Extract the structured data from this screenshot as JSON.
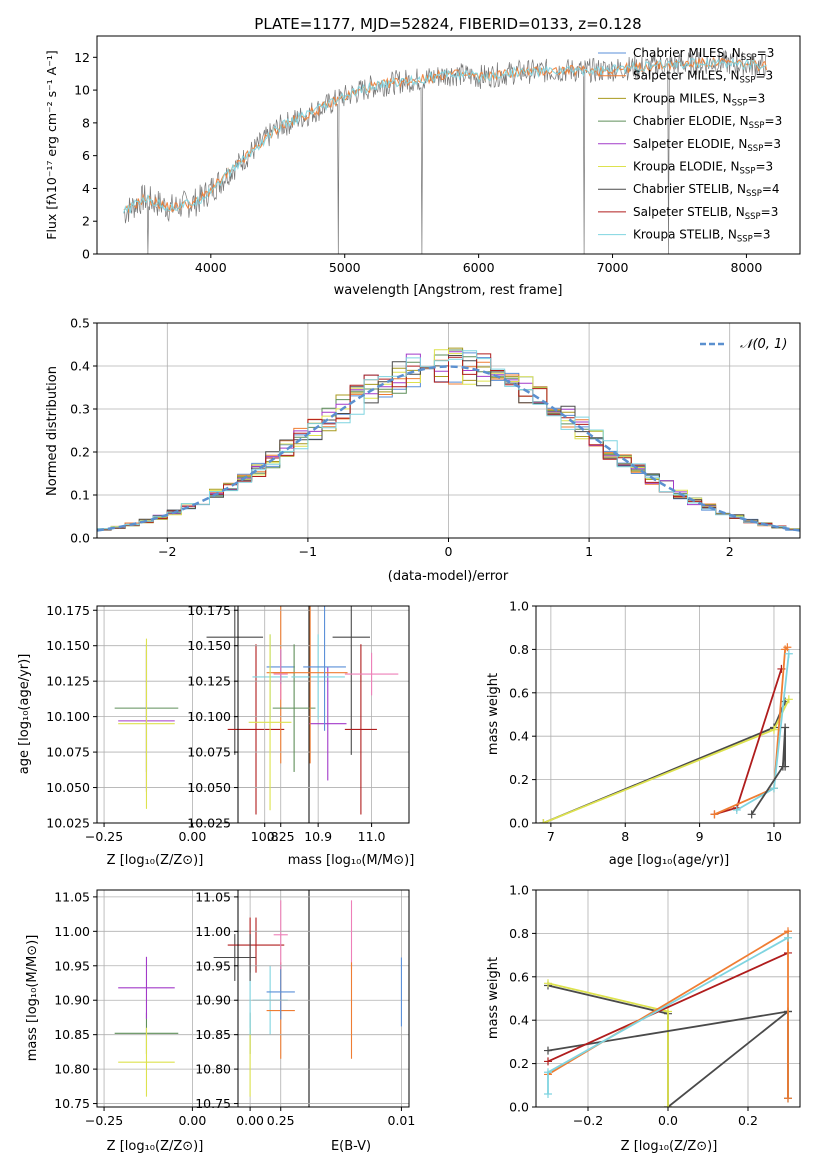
{
  "colors": {
    "chabrier_miles": "#5a8fd8",
    "salpeter_miles": "#ef7d33",
    "kroupa_miles": "#a89a1e",
    "chabrier_elodie": "#5f8f5a",
    "salpeter_elodie": "#a23ac9",
    "kroupa_elodie": "#dde24e",
    "chabrier_stelib": "#4a4a4a",
    "salpeter_stelib": "#b01d1d",
    "kroupa_stelib": "#7fd4e0",
    "pink": "#ee7fb8",
    "gauss": "#5b90cf",
    "data": "#777777"
  },
  "chart_data": [
    {
      "id": "spectrum",
      "type": "line",
      "title": "PLATE=1177, MJD=52824, FIBERID=0133, z=0.128",
      "xlabel": "wavelength [Angstrom, rest frame]",
      "ylabel": "Flux [fλ10⁻¹⁷ erg cm⁻² s⁻¹ A⁻¹]",
      "xlim": [
        3150,
        8400
      ],
      "ylim": [
        0,
        13.3
      ],
      "xticks": [
        "4000",
        "5000",
        "6000",
        "7000",
        "8000"
      ],
      "xtick_values": [
        4000,
        5000,
        6000,
        7000,
        8000
      ],
      "yticks": [
        "0",
        "2",
        "4",
        "6",
        "8",
        "10",
        "12"
      ],
      "ytick_values": [
        0,
        2,
        4,
        6,
        8,
        10,
        12
      ],
      "continuum": {
        "x": [
          3350,
          3500,
          3700,
          3900,
          4050,
          4300,
          4500,
          4800,
          5000,
          5200,
          5400,
          5600,
          5800,
          6000,
          6300,
          6600,
          6900,
          7200,
          7500,
          7800,
          8100
        ],
        "y": [
          2.5,
          3.4,
          2.8,
          3.2,
          4.3,
          6.2,
          7.7,
          8.8,
          9.6,
          10.2,
          10.5,
          10.7,
          11.0,
          10.8,
          11.1,
          11.2,
          11.2,
          11.4,
          11.6,
          11.7,
          11.5
        ]
      },
      "legend": [
        {
          "prefix": "Chabrier MILES, N",
          "sub": "SSP",
          "suffix": "=3",
          "color_key": "chabrier_miles"
        },
        {
          "prefix": "Salpeter MILES, N",
          "sub": "SSP",
          "suffix": "=3",
          "color_key": "salpeter_miles"
        },
        {
          "prefix": "Kroupa MILES, N",
          "sub": "SSP",
          "suffix": "=3",
          "color_key": "kroupa_miles"
        },
        {
          "prefix": "Chabrier ELODIE, N",
          "sub": "SSP",
          "suffix": "=3",
          "color_key": "chabrier_elodie"
        },
        {
          "prefix": "Salpeter ELODIE, N",
          "sub": "SSP",
          "suffix": "=3",
          "color_key": "salpeter_elodie"
        },
        {
          "prefix": "Kroupa ELODIE, N",
          "sub": "SSP",
          "suffix": "=3",
          "color_key": "kroupa_elodie"
        },
        {
          "prefix": "Chabrier STELIB, N",
          "sub": "SSP",
          "suffix": "=4",
          "color_key": "chabrier_stelib"
        },
        {
          "prefix": "Salpeter STELIB, N",
          "sub": "SSP",
          "suffix": "=3",
          "color_key": "salpeter_stelib"
        },
        {
          "prefix": "Kroupa STELIB, N",
          "sub": "SSP",
          "suffix": "=3",
          "color_key": "kroupa_stelib"
        }
      ]
    },
    {
      "id": "residuals",
      "type": "bar",
      "xlabel": "(data-model)/error",
      "ylabel": "Normed distribution",
      "xlim": [
        -2.5,
        2.5
      ],
      "ylim": [
        0,
        0.5
      ],
      "xticks": [
        "−2",
        "−1",
        "0",
        "1",
        "2"
      ],
      "xtick_values": [
        -2,
        -1,
        0,
        1,
        2
      ],
      "yticks": [
        "0.0",
        "0.1",
        "0.2",
        "0.3",
        "0.4",
        "0.5"
      ],
      "ytick_values": [
        0,
        0.1,
        0.2,
        0.3,
        0.4,
        0.5
      ],
      "legend": [
        {
          "label": "𝒩(0, 1)",
          "color_key": "gauss"
        }
      ],
      "series_color_keys": [
        "chabrier_miles",
        "salpeter_miles",
        "kroupa_miles",
        "chabrier_elodie",
        "salpeter_elodie",
        "kroupa_elodie",
        "chabrier_stelib",
        "salpeter_stelib",
        "kroupa_stelib"
      ]
    },
    {
      "id": "z_age",
      "type": "scatter",
      "xlabel": "Z [log₁₀(Z/Z⊙)]",
      "ylabel": "age  [log₁₀(age/yr)]",
      "xlim": [
        -0.27,
        0.33
      ],
      "ylim": [
        10.025,
        10.178
      ],
      "xticks": [
        "−0.25",
        "0.00",
        "0.25"
      ],
      "xtick_values": [
        -0.25,
        0,
        0.25
      ],
      "yticks": [
        "10.025",
        "10.050",
        "10.075",
        "10.100",
        "10.125",
        "10.150",
        "10.175"
      ],
      "ytick_values": [
        10.025,
        10.05,
        10.075,
        10.1,
        10.125,
        10.15,
        10.175
      ],
      "points": [
        {
          "x": -0.13,
          "y": 10.106,
          "xerr": 0.09,
          "yerr": 0.045,
          "color_key": "chabrier_elodie"
        },
        {
          "x": -0.13,
          "y": 10.097,
          "xerr": 0.08,
          "yerr": 0.05,
          "color_key": "salpeter_elodie"
        },
        {
          "x": -0.13,
          "y": 10.095,
          "xerr": 0.08,
          "yerr": 0.06,
          "color_key": "kroupa_elodie"
        },
        {
          "x": 0.12,
          "y": 10.156,
          "xerr": 0.08,
          "yerr": 0.083,
          "color_key": "chabrier_stelib"
        },
        {
          "x": 0.18,
          "y": 10.091,
          "xerr": 0.08,
          "yerr": 0.06,
          "color_key": "salpeter_stelib"
        },
        {
          "x": 0.22,
          "y": 10.128,
          "xerr": 0.05,
          "yerr": 0.03,
          "color_key": "kroupa_stelib"
        },
        {
          "x": 0.25,
          "y": 10.131,
          "xerr": 0.04,
          "yerr": 0.064,
          "color_key": "salpeter_miles"
        },
        {
          "x": 0.25,
          "y": 10.135,
          "xerr": 0.04,
          "yerr": 0.012,
          "color_key": "chabrier_miles"
        },
        {
          "x": 0.25,
          "y": 10.13,
          "xerr": 0.02,
          "yerr": 0.018,
          "color_key": "pink"
        }
      ]
    },
    {
      "id": "mass_age",
      "type": "scatter",
      "xlabel": "mass [log₁₀(M/M⊙)]",
      "ylabel": "",
      "xlim": [
        10.75,
        11.07
      ],
      "ylim": [
        10.025,
        10.178
      ],
      "xticks": [
        "10.8",
        "10.9",
        "11.0"
      ],
      "xtick_values": [
        10.8,
        10.9,
        11.0
      ],
      "yticks": [
        "10.025",
        "10.050",
        "10.075",
        "10.100",
        "10.125",
        "10.150",
        "10.175"
      ],
      "ytick_values": [
        10.025,
        10.05,
        10.075,
        10.1,
        10.125,
        10.15,
        10.175
      ],
      "points": [
        {
          "x": 10.855,
          "y": 10.106,
          "xerr": 0.04,
          "yerr": 0.045,
          "color_key": "chabrier_elodie"
        },
        {
          "x": 10.918,
          "y": 10.095,
          "xerr": 0.035,
          "yerr": 0.04,
          "color_key": "salpeter_elodie"
        },
        {
          "x": 10.81,
          "y": 10.096,
          "xerr": 0.04,
          "yerr": 0.062,
          "color_key": "kroupa_elodie"
        },
        {
          "x": 10.962,
          "y": 10.156,
          "xerr": 0.035,
          "yerr": 0.083,
          "color_key": "chabrier_stelib"
        },
        {
          "x": 10.98,
          "y": 10.091,
          "xerr": 0.03,
          "yerr": 0.06,
          "color_key": "salpeter_stelib"
        },
        {
          "x": 10.9,
          "y": 10.128,
          "xerr": 0.05,
          "yerr": 0.03,
          "color_key": "kroupa_stelib"
        },
        {
          "x": 10.885,
          "y": 10.131,
          "xerr": 0.07,
          "yerr": 0.064,
          "color_key": "salpeter_miles"
        },
        {
          "x": 10.912,
          "y": 10.135,
          "xerr": 0.04,
          "yerr": 0.045,
          "color_key": "chabrier_miles"
        },
        {
          "x": 11.0,
          "y": 10.13,
          "xerr": 0.05,
          "yerr": 0.015,
          "color_key": "pink"
        }
      ]
    },
    {
      "id": "age_weight",
      "type": "line",
      "xlabel": "age  [log₁₀(age/yr)]",
      "ylabel": "mass weight",
      "xlim": [
        6.8,
        10.35
      ],
      "ylim": [
        0,
        1.0
      ],
      "xticks": [
        "7",
        "8",
        "9",
        "10"
      ],
      "xtick_values": [
        7,
        8,
        9,
        10
      ],
      "yticks": [
        "0.0",
        "0.2",
        "0.4",
        "0.6",
        "0.8",
        "1.0"
      ],
      "ytick_values": [
        0,
        0.2,
        0.4,
        0.6,
        0.8,
        1.0
      ],
      "series": [
        {
          "color_key": "chabrier_stelib",
          "x": [
            6.9,
            10.0,
            10.15
          ],
          "y": [
            0.0,
            0.44,
            0.56
          ]
        },
        {
          "color_key": "kroupa_elodie",
          "x": [
            6.9,
            10.0,
            10.2
          ],
          "y": [
            0.0,
            0.43,
            0.57
          ]
        },
        {
          "color_key": "salpeter_stelib",
          "x": [
            9.2,
            9.5,
            10.1
          ],
          "y": [
            0.04,
            0.07,
            0.71
          ]
        },
        {
          "color_key": "salpeter_miles",
          "x": [
            9.2,
            10.0,
            10.15,
            10.18
          ],
          "y": [
            0.04,
            0.16,
            0.8,
            0.81
          ]
        },
        {
          "color_key": "kroupa_stelib",
          "x": [
            9.5,
            10.0,
            10.2
          ],
          "y": [
            0.06,
            0.16,
            0.78
          ]
        },
        {
          "color_key": "chabrier_stelib",
          "x": [
            9.7,
            10.12,
            10.15,
            10.15
          ],
          "y": [
            0.04,
            0.26,
            0.44,
            0.26
          ]
        }
      ]
    },
    {
      "id": "z_mass",
      "type": "scatter",
      "xlabel": "Z [log₁₀(Z/Z⊙)]",
      "ylabel": "mass [log₁₀(M/M⊙)]",
      "xlim": [
        -0.27,
        0.33
      ],
      "ylim": [
        10.745,
        11.06
      ],
      "xticks": [
        "−0.25",
        "0.00",
        "0.25"
      ],
      "xtick_values": [
        -0.25,
        0,
        0.25
      ],
      "yticks": [
        "10.75",
        "10.80",
        "10.85",
        "10.90",
        "10.95",
        "11.00",
        "11.05"
      ],
      "ytick_values": [
        10.75,
        10.8,
        10.85,
        10.9,
        10.95,
        11.0,
        11.05
      ],
      "points": [
        {
          "x": -0.13,
          "y": 10.852,
          "xerr": 0.09,
          "yerr": 0.03,
          "color_key": "chabrier_elodie"
        },
        {
          "x": -0.13,
          "y": 10.918,
          "xerr": 0.08,
          "yerr": 0.045,
          "color_key": "salpeter_elodie"
        },
        {
          "x": -0.13,
          "y": 10.81,
          "xerr": 0.08,
          "yerr": 0.05,
          "color_key": "kroupa_elodie"
        },
        {
          "x": 0.12,
          "y": 10.962,
          "xerr": 0.06,
          "yerr": 0.034,
          "color_key": "chabrier_stelib"
        },
        {
          "x": 0.18,
          "y": 10.98,
          "xerr": 0.08,
          "yerr": 0.04,
          "color_key": "salpeter_stelib"
        },
        {
          "x": 0.22,
          "y": 10.9,
          "xerr": 0.05,
          "yerr": 0.05,
          "color_key": "kroupa_stelib"
        },
        {
          "x": 0.25,
          "y": 10.885,
          "xerr": 0.04,
          "yerr": 0.07,
          "color_key": "salpeter_miles"
        },
        {
          "x": 0.25,
          "y": 10.912,
          "xerr": 0.04,
          "yerr": 0.04,
          "color_key": "chabrier_miles"
        },
        {
          "x": 0.25,
          "y": 10.995,
          "xerr": 0.02,
          "yerr": 0.05,
          "color_key": "pink"
        }
      ]
    },
    {
      "id": "ebv_mass",
      "type": "scatter",
      "xlabel": "E(B-V)",
      "ylabel": "",
      "xlim": [
        -0.0008,
        0.0105
      ],
      "ylim": [
        10.745,
        11.06
      ],
      "xticks": [
        "0.00",
        "0.01"
      ],
      "xtick_values": [
        0,
        0.01
      ],
      "yticks": [
        "10.75",
        "10.80",
        "10.85",
        "10.90",
        "10.95",
        "11.00",
        "11.05"
      ],
      "ytick_values": [
        10.75,
        10.8,
        10.85,
        10.9,
        10.95,
        11.0,
        11.05
      ],
      "points": [
        {
          "x": 0.0,
          "y": 10.852,
          "xerr": 0,
          "yerr": 0.03,
          "color_key": "chabrier_elodie"
        },
        {
          "x": 0.0,
          "y": 10.81,
          "xerr": 0,
          "yerr": 0.05,
          "color_key": "kroupa_elodie"
        },
        {
          "x": 0.0,
          "y": 10.98,
          "xerr": 0,
          "yerr": 0.04,
          "color_key": "salpeter_stelib"
        },
        {
          "x": 0.0,
          "y": 10.9,
          "xerr": 0,
          "yerr": 0.05,
          "color_key": "kroupa_stelib"
        },
        {
          "x": 0.0,
          "y": 10.962,
          "xerr": 0,
          "yerr": 0.034,
          "color_key": "chabrier_stelib"
        },
        {
          "x": 0.0067,
          "y": 10.995,
          "xerr": 0,
          "yerr": 0.05,
          "color_key": "pink"
        },
        {
          "x": 0.0067,
          "y": 10.885,
          "xerr": 0,
          "yerr": 0.07,
          "color_key": "salpeter_miles"
        },
        {
          "x": 0.01,
          "y": 10.912,
          "xerr": 0,
          "yerr": 0.05,
          "color_key": "chabrier_miles"
        }
      ]
    },
    {
      "id": "z_weight",
      "type": "line",
      "xlabel": "Z [log₁₀(Z/Z⊙)]",
      "ylabel": "mass weight",
      "xlim": [
        -0.33,
        0.33
      ],
      "ylim": [
        0,
        1.0
      ],
      "xticks": [
        "−0.2",
        "0.0",
        "0.2"
      ],
      "xtick_values": [
        -0.2,
        0,
        0.2
      ],
      "yticks": [
        "0.0",
        "0.2",
        "0.4",
        "0.6",
        "0.8",
        "1.0"
      ],
      "ytick_values": [
        0,
        0.2,
        0.4,
        0.6,
        0.8,
        1.0
      ],
      "series": [
        {
          "color_key": "chabrier_stelib",
          "x": [
            -0.3,
            0.0,
            0.0,
            0.3,
            0.3
          ],
          "y": [
            0.56,
            0.43,
            0.0,
            0.44,
            0.04
          ]
        },
        {
          "color_key": "kroupa_elodie",
          "x": [
            -0.3,
            0.0,
            0.0
          ],
          "y": [
            0.57,
            0.44,
            0.0
          ]
        },
        {
          "color_key": "chabrier_stelib",
          "x": [
            -0.3,
            0.3
          ],
          "y": [
            0.26,
            0.44
          ]
        },
        {
          "color_key": "salpeter_stelib",
          "x": [
            -0.3,
            0.3
          ],
          "y": [
            0.21,
            0.71
          ]
        },
        {
          "color_key": "salpeter_miles",
          "x": [
            -0.3,
            0.3,
            0.3
          ],
          "y": [
            0.15,
            0.81,
            0.04
          ]
        },
        {
          "color_key": "kroupa_stelib",
          "x": [
            -0.3,
            -0.3,
            0.3
          ],
          "y": [
            0.06,
            0.16,
            0.78
          ]
        }
      ]
    }
  ]
}
